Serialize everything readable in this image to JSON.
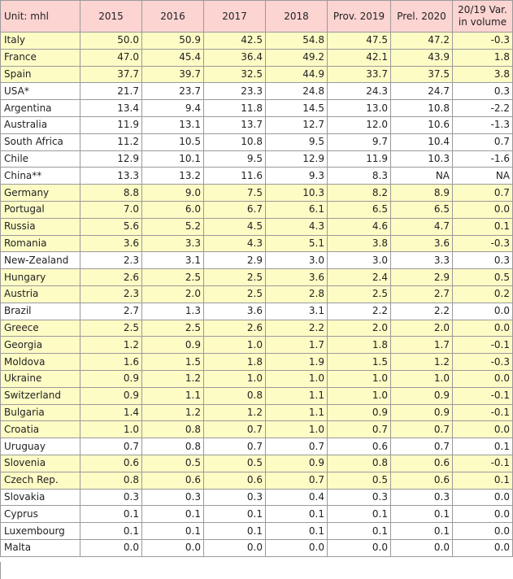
{
  "table": {
    "headers": [
      "Unit: mhl",
      "2015",
      "2016",
      "2017",
      "2018",
      "Prov. 2019",
      "Prel. 2020",
      "20/19 Var. in volume"
    ],
    "rows": [
      {
        "country": "Italy",
        "values": [
          "50.0",
          "50.9",
          "42.5",
          "54.8",
          "47.5",
          "47.2",
          "-0.3"
        ],
        "highlight": true
      },
      {
        "country": "France",
        "values": [
          "47.0",
          "45.4",
          "36.4",
          "49.2",
          "42.1",
          "43.9",
          "1.8"
        ],
        "highlight": true
      },
      {
        "country": "Spain",
        "values": [
          "37.7",
          "39.7",
          "32.5",
          "44.9",
          "33.7",
          "37.5",
          "3.8"
        ],
        "highlight": true
      },
      {
        "country": "USA*",
        "values": [
          "21.7",
          "23.7",
          "23.3",
          "24.8",
          "24.3",
          "24.7",
          "0.3"
        ],
        "highlight": false
      },
      {
        "country": "Argentina",
        "values": [
          "13.4",
          "9.4",
          "11.8",
          "14.5",
          "13.0",
          "10.8",
          "-2.2"
        ],
        "highlight": false
      },
      {
        "country": "Australia",
        "values": [
          "11.9",
          "13.1",
          "13.7",
          "12.7",
          "12.0",
          "10.6",
          "-1.3"
        ],
        "highlight": false
      },
      {
        "country": "South Africa",
        "values": [
          "11.2",
          "10.5",
          "10.8",
          "9.5",
          "9.7",
          "10.4",
          "0.7"
        ],
        "highlight": false
      },
      {
        "country": "Chile",
        "values": [
          "12.9",
          "10.1",
          "9.5",
          "12.9",
          "11.9",
          "10.3",
          "-1.6"
        ],
        "highlight": false
      },
      {
        "country": "China**",
        "values": [
          "13.3",
          "13.2",
          "11.6",
          "9.3",
          "8.3",
          "NA",
          "NA"
        ],
        "highlight": false
      },
      {
        "country": "Germany",
        "values": [
          "8.8",
          "9.0",
          "7.5",
          "10.3",
          "8.2",
          "8.9",
          "0.7"
        ],
        "highlight": true
      },
      {
        "country": "Portugal",
        "values": [
          "7.0",
          "6.0",
          "6.7",
          "6.1",
          "6.5",
          "6.5",
          "0.0"
        ],
        "highlight": true
      },
      {
        "country": "Russia",
        "values": [
          "5.6",
          "5.2",
          "4.5",
          "4.3",
          "4.6",
          "4.7",
          "0.1"
        ],
        "highlight": true
      },
      {
        "country": "Romania",
        "values": [
          "3.6",
          "3.3",
          "4.3",
          "5.1",
          "3.8",
          "3.6",
          "-0.3"
        ],
        "highlight": true
      },
      {
        "country": "New-Zealand",
        "values": [
          "2.3",
          "3.1",
          "2.9",
          "3.0",
          "3.0",
          "3.3",
          "0.3"
        ],
        "highlight": false
      },
      {
        "country": "Hungary",
        "values": [
          "2.6",
          "2.5",
          "2.5",
          "3.6",
          "2.4",
          "2.9",
          "0.5"
        ],
        "highlight": true
      },
      {
        "country": "Austria",
        "values": [
          "2.3",
          "2.0",
          "2.5",
          "2.8",
          "2.5",
          "2.7",
          "0.2"
        ],
        "highlight": true
      },
      {
        "country": "Brazil",
        "values": [
          "2.7",
          "1.3",
          "3.6",
          "3.1",
          "2.2",
          "2.2",
          "0.0"
        ],
        "highlight": false
      },
      {
        "country": "Greece",
        "values": [
          "2.5",
          "2.5",
          "2.6",
          "2.2",
          "2.0",
          "2.0",
          "0.0"
        ],
        "highlight": true
      },
      {
        "country": "Georgia",
        "values": [
          "1.2",
          "0.9",
          "1.0",
          "1.7",
          "1.8",
          "1.7",
          "-0.1"
        ],
        "highlight": true
      },
      {
        "country": "Moldova",
        "values": [
          "1.6",
          "1.5",
          "1.8",
          "1.9",
          "1.5",
          "1.2",
          "-0.3"
        ],
        "highlight": true
      },
      {
        "country": "Ukraine",
        "values": [
          "0.9",
          "1.2",
          "1.0",
          "1.0",
          "1.0",
          "1.0",
          "0.0"
        ],
        "highlight": true
      },
      {
        "country": "Switzerland",
        "values": [
          "0.9",
          "1.1",
          "0.8",
          "1.1",
          "1.0",
          "0.9",
          "-0.1"
        ],
        "highlight": true
      },
      {
        "country": "Bulgaria",
        "values": [
          "1.4",
          "1.2",
          "1.2",
          "1.1",
          "0.9",
          "0.9",
          "-0.1"
        ],
        "highlight": true
      },
      {
        "country": "Croatia",
        "values": [
          "1.0",
          "0.8",
          "0.7",
          "1.0",
          "0.7",
          "0.7",
          "0.0"
        ],
        "highlight": true
      },
      {
        "country": "Uruguay",
        "values": [
          "0.7",
          "0.8",
          "0.7",
          "0.7",
          "0.6",
          "0.7",
          "0.1"
        ],
        "highlight": false
      },
      {
        "country": "Slovenia",
        "values": [
          "0.6",
          "0.5",
          "0.5",
          "0.9",
          "0.8",
          "0.6",
          "-0.1"
        ],
        "highlight": true
      },
      {
        "country": "Czech Rep.",
        "values": [
          "0.8",
          "0.6",
          "0.6",
          "0.7",
          "0.5",
          "0.6",
          "0.1"
        ],
        "highlight": true
      },
      {
        "country": "Slovakia",
        "values": [
          "0.3",
          "0.3",
          "0.3",
          "0.4",
          "0.3",
          "0.3",
          "0.0"
        ],
        "highlight": false
      },
      {
        "country": "Cyprus",
        "values": [
          "0.1",
          "0.1",
          "0.1",
          "0.1",
          "0.1",
          "0.1",
          "0.0"
        ],
        "highlight": false
      },
      {
        "country": "Luxembourg",
        "values": [
          "0.1",
          "0.1",
          "0.1",
          "0.1",
          "0.1",
          "0.1",
          "0.0"
        ],
        "highlight": false
      },
      {
        "country": "Malta",
        "values": [
          "0.0",
          "0.0",
          "0.0",
          "0.0",
          "0.0",
          "0.0",
          "0.0"
        ],
        "highlight": false
      }
    ]
  },
  "colors": {
    "header_bg": "#fcd4d2",
    "highlight_bg": "#fefcc5",
    "plain_bg": "#ffffff",
    "border": "#9a9a9a"
  }
}
